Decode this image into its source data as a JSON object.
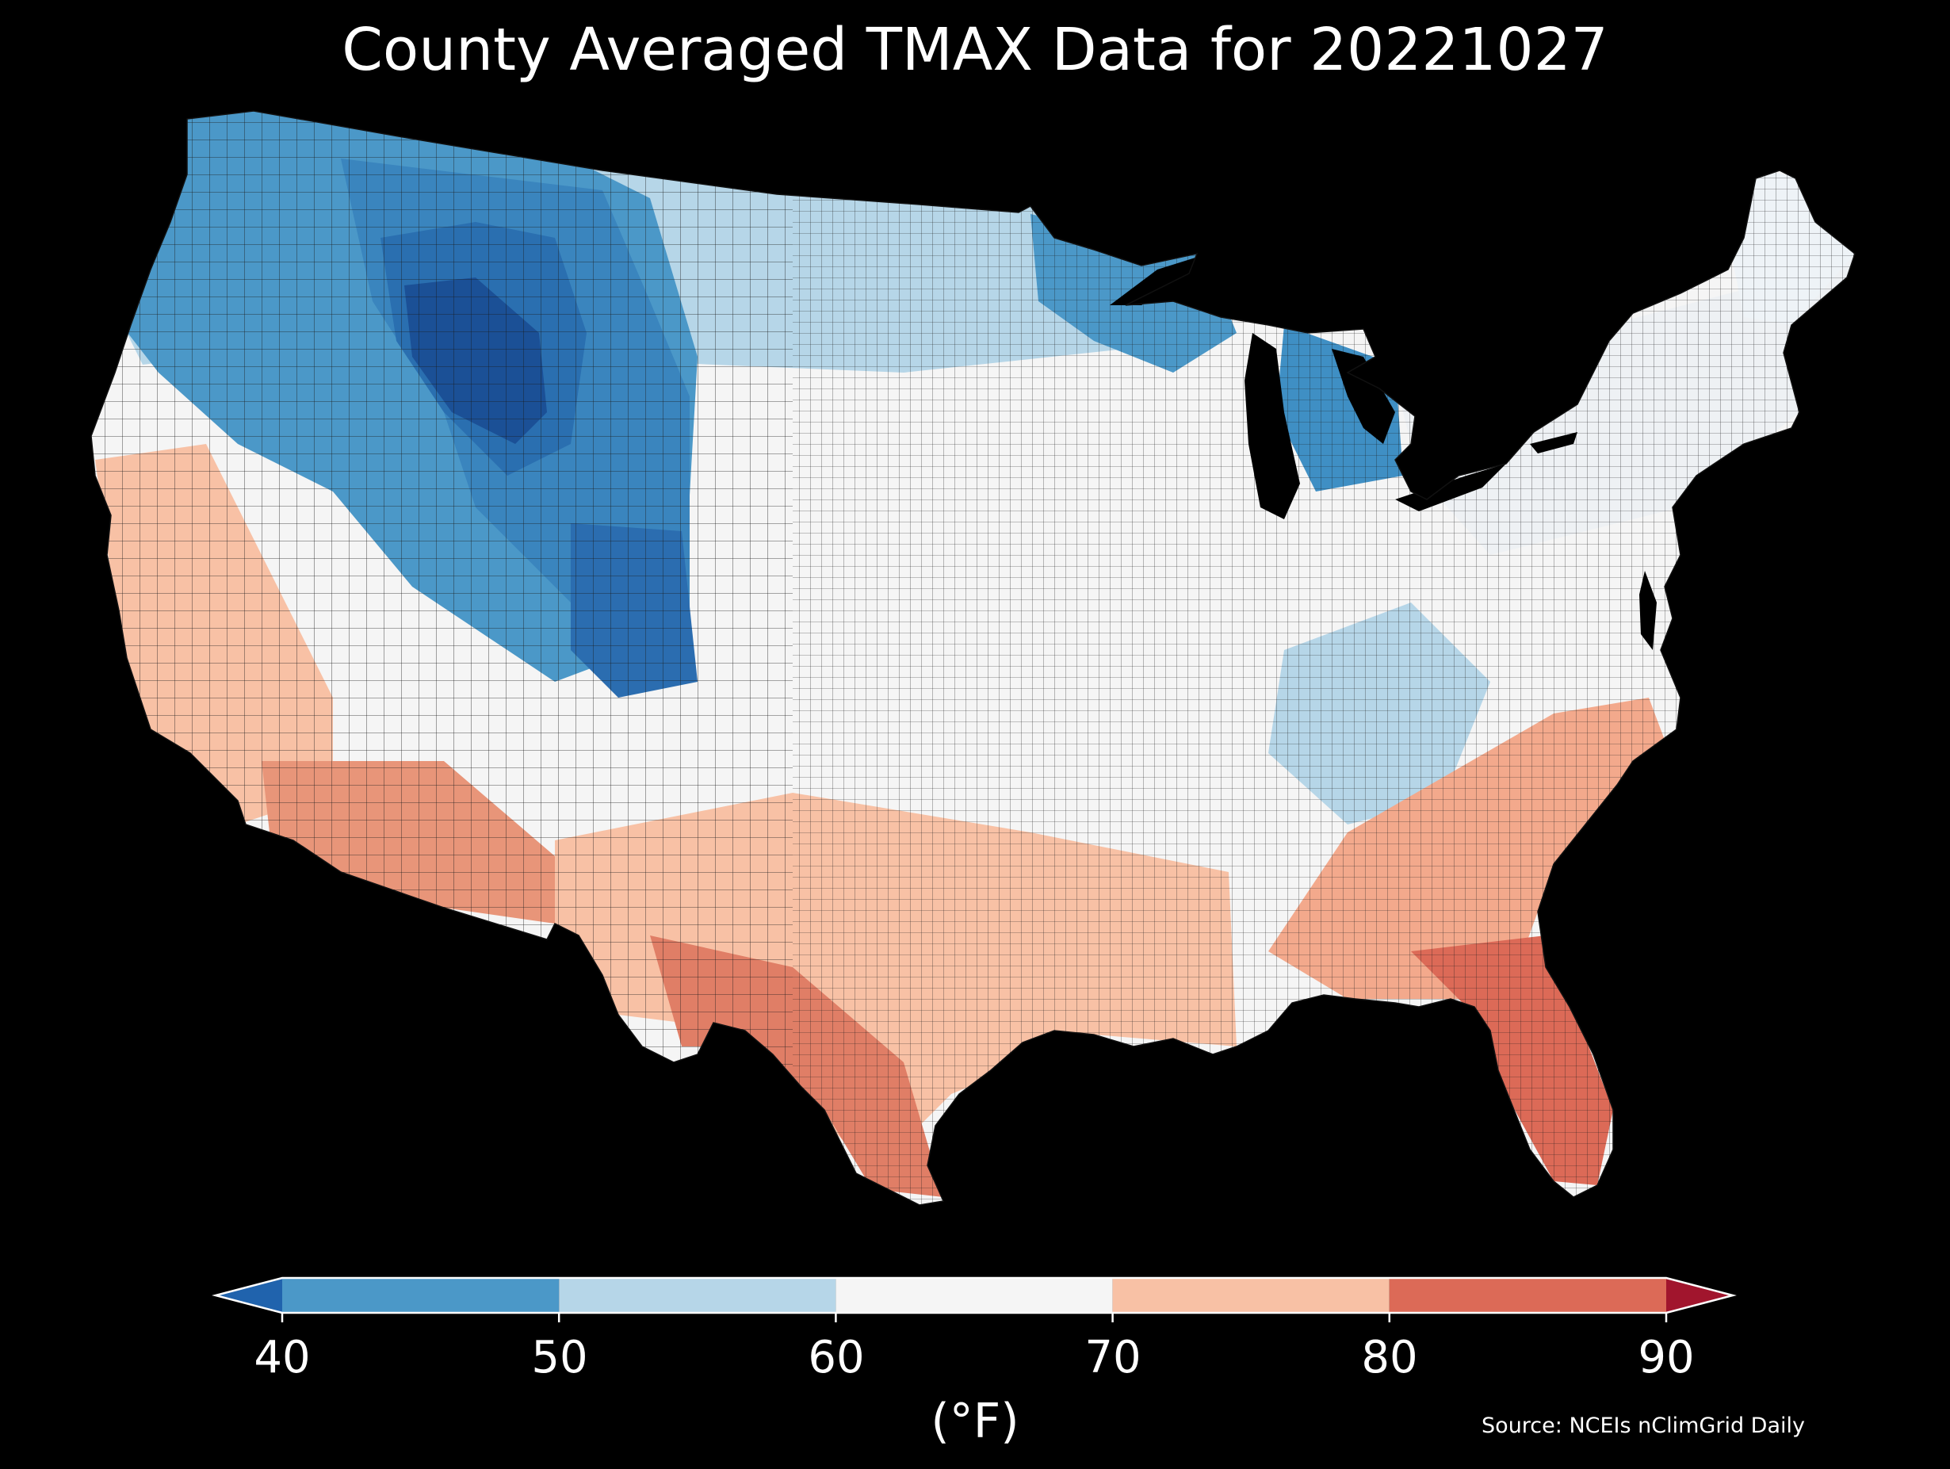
{
  "title": "County Averaged TMAX Data for 20221027",
  "colorbar": {
    "unit_label": "(°F)",
    "ticks": [
      "40",
      "50",
      "60",
      "70",
      "80",
      "90"
    ],
    "bins": [
      {
        "from": 40,
        "to": 50,
        "color": "#4b98c8"
      },
      {
        "from": 50,
        "to": 60,
        "color": "#b6d6e8"
      },
      {
        "from": 60,
        "to": 70,
        "color": "#f5f5f5"
      },
      {
        "from": 70,
        "to": 80,
        "color": "#f8c1a5"
      },
      {
        "from": 80,
        "to": 90,
        "color": "#dc6a57"
      }
    ],
    "under_color": "#2063ad",
    "over_color": "#a1152d",
    "extend": "both"
  },
  "source": "Source: NCEIs nClimGrid Daily",
  "map": {
    "region": "Contiguous United States",
    "units": "county",
    "background": "#000000",
    "county_border_color": "#222222",
    "value_range_depicted": [
      32,
      88
    ],
    "cold_core": "Wyoming / Idaho / Colorado Rockies",
    "warm_core": "Southern Florida, South Texas, Southern Arizona"
  }
}
